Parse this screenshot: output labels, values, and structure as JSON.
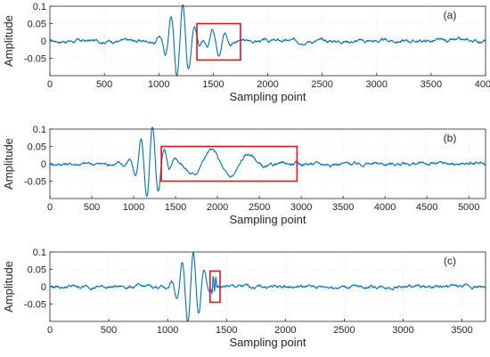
{
  "chart_data": [
    {
      "type": "line",
      "panel_label": "(a)",
      "xlabel": "Sampling point",
      "ylabel": "Amplitude",
      "xlim": [
        0,
        4000
      ],
      "ylim": [
        -0.1,
        0.1
      ],
      "xticks": [
        0,
        500,
        1000,
        1500,
        2000,
        2500,
        3000,
        3500,
        4000
      ],
      "xtick_labels": [
        "0",
        "500",
        "1000",
        "1500",
        "2000",
        "2500",
        "3000",
        "3500",
        "4000"
      ],
      "yticks": [
        -0.05,
        0,
        0.05,
        0.1
      ],
      "ytick_labels": [
        "-0.05",
        "0",
        "0.05",
        "0.1"
      ],
      "grid": true,
      "series": [
        {
          "color": "#0072bd",
          "pulse_center": 1200,
          "pulse_amplitude": 0.105,
          "pulse_period": 110,
          "tail_start": 1350,
          "tail_end": 1750,
          "tail_amplitude": 0.04,
          "tail_period": 115,
          "noise_amplitude": 0.004
        }
      ],
      "highlight_box": {
        "x": [
          1350,
          1750
        ],
        "y": [
          -0.055,
          0.05
        ],
        "color": "#e0141e"
      }
    },
    {
      "type": "line",
      "panel_label": "(b)",
      "xlabel": "Sampling point",
      "ylabel": "Amplitude",
      "xlim": [
        0,
        5200
      ],
      "ylim": [
        -0.1,
        0.1
      ],
      "xticks": [
        0,
        500,
        1000,
        1500,
        2000,
        2500,
        3000,
        3500,
        4000,
        4500,
        5000
      ],
      "xtick_labels": [
        "0",
        "500",
        "1000",
        "1500",
        "2000",
        "2500",
        "3000",
        "3500",
        "4000",
        "4500",
        "5000"
      ],
      "yticks": [
        -0.05,
        0,
        0.05,
        0.1
      ],
      "ytick_labels": [
        "-0.05",
        "0",
        "0.05",
        "0.1"
      ],
      "grid": true,
      "series": [
        {
          "color": "#0072bd",
          "pulse_center": 1200,
          "pulse_amplitude": 0.105,
          "pulse_period": 140,
          "tail_start": 1350,
          "tail_end": 2950,
          "tail_amplitude": 0.044,
          "tail_period": 460,
          "noise_amplitude": 0.004
        }
      ],
      "highlight_box": {
        "x": [
          1330,
          2950
        ],
        "y": [
          -0.05,
          0.05
        ],
        "color": "#e0141e"
      }
    },
    {
      "type": "line",
      "panel_label": "(c)",
      "xlabel": "Sampling point",
      "ylabel": "Amplitude",
      "xlim": [
        0,
        3700
      ],
      "ylim": [
        -0.1,
        0.1
      ],
      "xticks": [
        0,
        500,
        1000,
        1500,
        2000,
        2500,
        3000,
        3500
      ],
      "xtick_labels": [
        "0",
        "500",
        "1000",
        "1500",
        "2000",
        "2500",
        "3000",
        "3500"
      ],
      "yticks": [
        -0.05,
        0,
        0.05,
        0.1
      ],
      "ytick_labels": [
        "-0.05",
        "0",
        "0.05",
        "0.1"
      ],
      "grid": true,
      "series": [
        {
          "color": "#0072bd",
          "pulse_center": 1200,
          "pulse_amplitude": 0.105,
          "pulse_period": 95,
          "tail_start": 1360,
          "tail_end": 1440,
          "tail_amplitude": 0.03,
          "tail_period": 22,
          "noise_amplitude": 0.004
        }
      ],
      "highlight_box": {
        "x": [
          1360,
          1445
        ],
        "y": [
          -0.045,
          0.045
        ],
        "color": "#e0141e"
      }
    }
  ]
}
